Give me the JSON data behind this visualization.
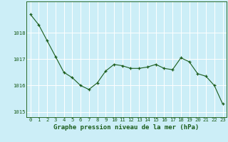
{
  "x": [
    0,
    1,
    2,
    3,
    4,
    5,
    6,
    7,
    8,
    9,
    10,
    11,
    12,
    13,
    14,
    15,
    16,
    17,
    18,
    19,
    20,
    21,
    22,
    23
  ],
  "y": [
    1018.7,
    1018.3,
    1017.7,
    1017.1,
    1016.5,
    1016.3,
    1016.0,
    1015.85,
    1016.1,
    1016.55,
    1016.8,
    1016.75,
    1016.65,
    1016.65,
    1016.7,
    1016.8,
    1016.65,
    1016.6,
    1017.05,
    1016.9,
    1016.45,
    1016.35,
    1016.0,
    1015.3
  ],
  "ylim": [
    1014.8,
    1019.2
  ],
  "yticks": [
    1015,
    1016,
    1017,
    1018
  ],
  "xticks": [
    0,
    1,
    2,
    3,
    4,
    5,
    6,
    7,
    8,
    9,
    10,
    11,
    12,
    13,
    14,
    15,
    16,
    17,
    18,
    19,
    20,
    21,
    22,
    23
  ],
  "line_color": "#1a5c1a",
  "marker_color": "#1a5c1a",
  "bg_color": "#cceef7",
  "grid_color": "#ffffff",
  "tick_label_color": "#1a5c1a",
  "tick_label_fontsize": 5.2,
  "xlabel": "Graphe pression niveau de la mer (hPa)",
  "xlabel_color": "#1a5c1a",
  "xlabel_fontsize": 6.5,
  "spine_color": "#2a6a2a"
}
